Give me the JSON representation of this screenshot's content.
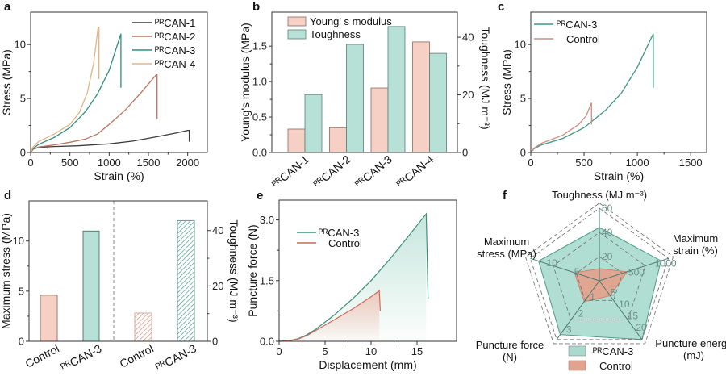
{
  "panel_letters": [
    "a",
    "b",
    "c",
    "d",
    "e",
    "f"
  ],
  "chart_data": [
    {
      "id": "a",
      "type": "line",
      "xlabel": "Strain (%)",
      "ylabel": "Stress (MPa)",
      "xlim": [
        0,
        2250
      ],
      "ylim": [
        0,
        13
      ],
      "xticks": [
        0,
        500,
        1000,
        1500,
        2000
      ],
      "xtick_labels": [
        "0",
        "500",
        "1000",
        "1500",
        "2000"
      ],
      "yticks": [
        0,
        5,
        10
      ],
      "ytick_labels": [
        "0",
        "5",
        "10"
      ],
      "legend": "top-right",
      "series": [
        {
          "name": "ᴾᴿCAN-1",
          "color": "#3a3a3a",
          "points": [
            [
              0,
              0
            ],
            [
              30,
              0.3
            ],
            [
              100,
              0.48
            ],
            [
              300,
              0.55
            ],
            [
              600,
              0.62
            ],
            [
              1000,
              0.8
            ],
            [
              1300,
              1.05
            ],
            [
              1600,
              1.45
            ],
            [
              1850,
              1.8
            ],
            [
              2000,
              2.05
            ],
            [
              2020,
              2.05
            ],
            [
              2020,
              1.0
            ]
          ]
        },
        {
          "name": "ᴾᴿCAN-2",
          "color": "#b9735e",
          "points": [
            [
              0,
              0
            ],
            [
              30,
              0.3
            ],
            [
              100,
              0.5
            ],
            [
              300,
              0.7
            ],
            [
              500,
              0.95
            ],
            [
              700,
              1.25
            ],
            [
              850,
              1.7
            ],
            [
              1000,
              2.6
            ],
            [
              1200,
              3.9
            ],
            [
              1400,
              5.5
            ],
            [
              1600,
              7.2
            ],
            [
              1610,
              7.2
            ],
            [
              1610,
              3.1
            ]
          ]
        },
        {
          "name": "ᴾᴿCAN-3",
          "color": "#2f8f7d",
          "points": [
            [
              0,
              0
            ],
            [
              30,
              0.35
            ],
            [
              100,
              0.75
            ],
            [
              300,
              1.4
            ],
            [
              500,
              2.3
            ],
            [
              700,
              3.8
            ],
            [
              850,
              5.4
            ],
            [
              1000,
              7.6
            ],
            [
              1150,
              11
            ],
            [
              1150,
              6
            ]
          ]
        },
        {
          "name": "ᴾᴿCAN-4",
          "color": "#e2b585",
          "points": [
            [
              0,
              0
            ],
            [
              30,
              0.5
            ],
            [
              100,
              1.0
            ],
            [
              300,
              1.7
            ],
            [
              500,
              2.6
            ],
            [
              620,
              3.7
            ],
            [
              720,
              5.5
            ],
            [
              800,
              8.2
            ],
            [
              860,
              11.6
            ],
            [
              870,
              11.6
            ],
            [
              870,
              6.8
            ]
          ]
        }
      ]
    },
    {
      "id": "b",
      "type": "bar",
      "categories": [
        "ᴾᴿCAN-1",
        "ᴾᴿCAN-2",
        "ᴾᴿCAN-3",
        "ᴾᴿCAN-4"
      ],
      "ylabel": "Young's modulus (MPa)",
      "y2label": "Toughness (MJ m⁻³)",
      "ylim": [
        0,
        1.98
      ],
      "y2lim": [
        0,
        48.7
      ],
      "yticks": [
        0,
        0.5,
        1.0,
        1.5
      ],
      "ytick_labels": [
        "0.0",
        "0.5",
        "1.0",
        "1.5"
      ],
      "y2ticks": [
        0,
        20,
        40
      ],
      "y2tick_labels": [
        "0",
        "20",
        "40"
      ],
      "legend": "top-left",
      "series": [
        {
          "name": "Young' s modulus",
          "axis": "left",
          "color": "#f6d0c4",
          "stroke": "#8a6a60",
          "values": [
            0.33,
            0.35,
            0.91,
            1.56
          ]
        },
        {
          "name": "Toughness",
          "axis": "right",
          "color": "#b7e0d7",
          "stroke": "#5a7f78",
          "values": [
            20.1,
            37.5,
            43.7,
            34.4
          ]
        }
      ]
    },
    {
      "id": "c",
      "type": "line",
      "xlabel": "Strain (%)",
      "ylabel": "Stress (MPa)",
      "xlim": [
        0,
        1650
      ],
      "ylim": [
        0,
        13
      ],
      "xticks": [
        0,
        500,
        1000,
        1500
      ],
      "xtick_labels": [
        "0",
        "500",
        "1000",
        "1500"
      ],
      "yticks": [
        0,
        5,
        10
      ],
      "ytick_labels": [
        "0",
        "5",
        "10"
      ],
      "legend": "top-left",
      "series": [
        {
          "name": "ᴾᴿCAN-3",
          "color": "#3f9686",
          "points": [
            [
              0,
              0
            ],
            [
              30,
              0.35
            ],
            [
              100,
              0.7
            ],
            [
              300,
              1.3
            ],
            [
              500,
              2.3
            ],
            [
              700,
              3.9
            ],
            [
              850,
              5.5
            ],
            [
              1000,
              7.9
            ],
            [
              1150,
              11
            ],
            [
              1150,
              6
            ]
          ]
        },
        {
          "name": "Control",
          "color": "#d08f80",
          "points": [
            [
              0,
              0
            ],
            [
              30,
              0.4
            ],
            [
              100,
              0.85
            ],
            [
              300,
              1.6
            ],
            [
              450,
              2.6
            ],
            [
              520,
              3.4
            ],
            [
              570,
              4.6
            ],
            [
              570,
              2.6
            ]
          ]
        }
      ]
    },
    {
      "id": "d",
      "type": "bar",
      "ylabel": "Maximum stress (MPa)",
      "y2label": "Toughness (MJ m⁻³)",
      "ylim": [
        0,
        14
      ],
      "y2lim": [
        0,
        50.7
      ],
      "yticks": [
        0,
        5,
        10
      ],
      "ytick_labels": [
        "0",
        "5",
        "10"
      ],
      "y2ticks": [
        0,
        20,
        40
      ],
      "y2tick_labels": [
        "0",
        "20",
        "40"
      ],
      "bars": [
        {
          "category": "Control",
          "axis": "left",
          "value": 4.6,
          "color": "#f6d0c4",
          "stroke": "#8a6a60",
          "hatched": false
        },
        {
          "category": "ᴾᴿCAN-3",
          "axis": "left",
          "value": 11.0,
          "color": "#b7e0d7",
          "stroke": "#4f6f68",
          "hatched": false
        },
        {
          "category": "Control",
          "axis": "right",
          "value": 10.2,
          "color": "#d98b73",
          "stroke": "#c9a497",
          "hatched": true
        },
        {
          "category": "ᴾᴿCAN-3",
          "axis": "right",
          "value": 43.6,
          "color": "#3f9686",
          "stroke": "#5a8f86",
          "hatched": true
        }
      ]
    },
    {
      "id": "e",
      "type": "area",
      "xlabel": "Displacement (mm)",
      "ylabel": "Puncture force (N)",
      "xlim": [
        0,
        19.3
      ],
      "ylim": [
        0,
        3.49
      ],
      "xticks": [
        0,
        5,
        10,
        15
      ],
      "xtick_labels": [
        "0",
        "5",
        "10",
        "15"
      ],
      "yticks": [
        0,
        1.5,
        3.0
      ],
      "ytick_labels": [
        "0.0",
        "1.5",
        "3.0"
      ],
      "legend": "top-left",
      "series": [
        {
          "name": "ᴾᴿCAN-3",
          "color": "#3f8f7a",
          "fill": "#bfe3d8",
          "points": [
            [
              0,
              0
            ],
            [
              1,
              0.01
            ],
            [
              2,
              0.06
            ],
            [
              3,
              0.16
            ],
            [
              4,
              0.3
            ],
            [
              6,
              0.65
            ],
            [
              8,
              1.05
            ],
            [
              10,
              1.5
            ],
            [
              12,
              2.02
            ],
            [
              14,
              2.58
            ],
            [
              16,
              3.15
            ],
            [
              16.2,
              1.05
            ]
          ]
        },
        {
          "name": "Control",
          "color": "#c96a5a",
          "fill": "#f0c3b6",
          "points": [
            [
              0,
              0
            ],
            [
              1,
              0.01
            ],
            [
              2,
              0.05
            ],
            [
              3,
              0.14
            ],
            [
              4,
              0.27
            ],
            [
              6,
              0.53
            ],
            [
              8,
              0.8
            ],
            [
              10,
              1.1
            ],
            [
              10.9,
              1.25
            ],
            [
              11,
              0.75
            ]
          ]
        }
      ]
    },
    {
      "id": "f",
      "type": "radar",
      "axes": [
        {
          "label": [
            "Toughness (MJ m⁻³)"
          ],
          "max": 60,
          "ticks": [
            20,
            40,
            60
          ],
          "tick_labels": [
            "20",
            "40",
            "60"
          ]
        },
        {
          "label": [
            "Maximum",
            "strain (%)"
          ],
          "max": 1300,
          "ticks": [
            500,
            1000
          ],
          "tick_labels": [
            "500",
            "1000"
          ]
        },
        {
          "label": [
            "Puncture energy",
            "(mJ)"
          ],
          "max": 25,
          "ticks": [
            5,
            10,
            15,
            20
          ],
          "tick_labels": [
            "5",
            "10",
            "15",
            "20"
          ]
        },
        {
          "label": [
            "Puncture force",
            "(N)"
          ],
          "max": 3.6,
          "ticks": [
            1,
            2,
            3
          ],
          "tick_labels": [
            "1",
            "2",
            "3"
          ]
        },
        {
          "label": [
            "Maximum",
            "stress (MPa)"
          ],
          "max": 12.5,
          "ticks": [
            5,
            10
          ],
          "tick_labels": [
            "5",
            "10"
          ]
        }
      ],
      "legend": "bottom",
      "series": [
        {
          "name": "ᴾᴿCAN-3",
          "color": "#4e9a88",
          "fill": "#a9dacd",
          "values": [
            44,
            1160,
            25,
            3.3,
            11
          ]
        },
        {
          "name": "Control",
          "color": "#c98572",
          "fill": "#e3a28d",
          "values": [
            10,
            520,
            6.4,
            1.28,
            4.5
          ]
        }
      ]
    }
  ]
}
